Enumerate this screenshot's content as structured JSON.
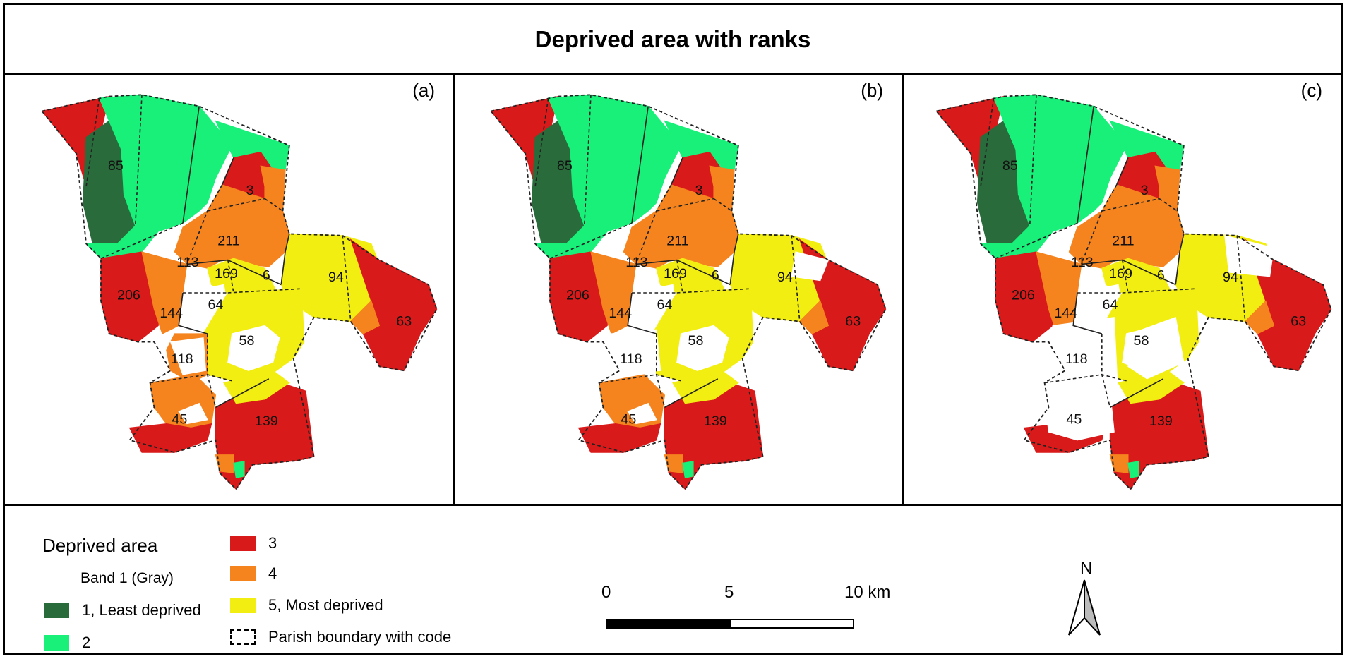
{
  "title": "Deprived area with ranks",
  "panels": [
    {
      "tag": "(a)"
    },
    {
      "tag": "(b)"
    },
    {
      "tag": "(c)"
    }
  ],
  "parish_codes": [
    "85",
    "3",
    "211",
    "113",
    "169",
    "6",
    "94",
    "206",
    "64",
    "144",
    "63",
    "58",
    "118",
    "45",
    "139"
  ],
  "legend": {
    "title": "Deprived area",
    "subtitle": "Band 1 (Gray)",
    "items": [
      {
        "label": "1, Least deprived",
        "color": "#2a6b3c"
      },
      {
        "label": "2",
        "color": "#19f07a"
      },
      {
        "label": "3",
        "color": "#d91a1a"
      },
      {
        "label": "4",
        "color": "#f5841f"
      },
      {
        "label": "5, Most deprived",
        "color": "#f2ee12"
      },
      {
        "label": "Parish boundary with code",
        "color": "#ffffff"
      }
    ]
  },
  "scale_bar": {
    "ticks": [
      "0",
      "5",
      "10 km"
    ]
  },
  "north_arrow": {
    "label": "N"
  }
}
